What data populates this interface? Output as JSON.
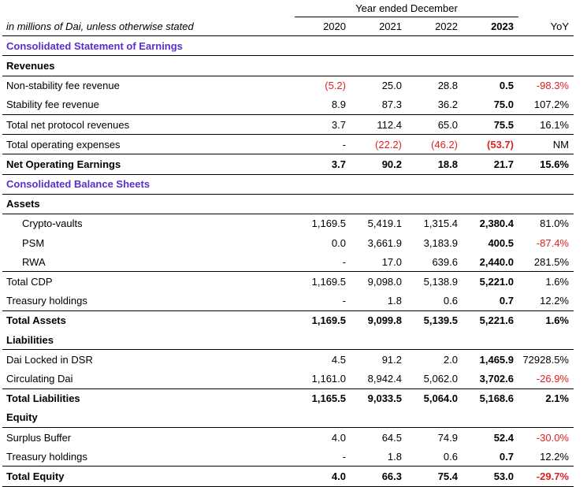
{
  "header": {
    "period": "Year ended December",
    "unit_note": "in millions of Dai, unless otherwise stated",
    "years": [
      "2020",
      "2021",
      "2022",
      "2023",
      "YoY"
    ]
  },
  "rows": [
    {
      "label": "Consolidated Statement of Earnings",
      "kind": "section"
    },
    {
      "label": "Revenues",
      "kind": "heading"
    },
    {
      "label": "Non-stability fee revenue",
      "kind": "row",
      "values": [
        "(5.2)",
        "25.0",
        "28.8",
        "0.5",
        "-98.3%"
      ],
      "neg": [
        true,
        false,
        false,
        false,
        true
      ]
    },
    {
      "label": "Stability fee revenue",
      "kind": "row",
      "values": [
        "8.9",
        "87.3",
        "36.2",
        "75.0",
        "107.2%"
      ],
      "neg": [
        false,
        false,
        false,
        false,
        false
      ]
    },
    {
      "label": "Total net protocol revenues",
      "kind": "row",
      "values": [
        "3.7",
        "112.4",
        "65.0",
        "75.5",
        "16.1%"
      ],
      "neg": [
        false,
        false,
        false,
        false,
        false
      ]
    },
    {
      "label": "Total operating expenses",
      "kind": "row",
      "values": [
        "-",
        "(22.2)",
        "(46.2)",
        "(53.7)",
        "NM"
      ],
      "neg": [
        false,
        true,
        true,
        true,
        false
      ]
    },
    {
      "label": "Net Operating Earnings",
      "kind": "bold",
      "values": [
        "3.7",
        "90.2",
        "18.8",
        "21.7",
        "15.6%"
      ],
      "neg": [
        false,
        false,
        false,
        false,
        false
      ]
    },
    {
      "label": "Consolidated Balance Sheets",
      "kind": "section"
    },
    {
      "label": "Assets",
      "kind": "heading"
    },
    {
      "label": "Crypto-vaults",
      "kind": "indent",
      "values": [
        "1,169.5",
        "5,419.1",
        "1,315.4",
        "2,380.4",
        "81.0%"
      ],
      "neg": [
        false,
        false,
        false,
        false,
        false
      ]
    },
    {
      "label": "PSM",
      "kind": "indent",
      "values": [
        "0.0",
        "3,661.9",
        "3,183.9",
        "400.5",
        "-87.4%"
      ],
      "neg": [
        false,
        false,
        false,
        false,
        true
      ]
    },
    {
      "label": "RWA",
      "kind": "indent",
      "values": [
        "-",
        "17.0",
        "639.6",
        "2,440.0",
        "281.5%"
      ],
      "neg": [
        false,
        false,
        false,
        false,
        false
      ]
    },
    {
      "label": "Total CDP",
      "kind": "row",
      "values": [
        "1,169.5",
        "9,098.0",
        "5,138.9",
        "5,221.0",
        "1.6%"
      ],
      "neg": [
        false,
        false,
        false,
        false,
        false
      ]
    },
    {
      "label": "Treasury holdings",
      "kind": "row",
      "values": [
        "-",
        "1.8",
        "0.6",
        "0.7",
        "12.2%"
      ],
      "neg": [
        false,
        false,
        false,
        false,
        false
      ]
    },
    {
      "label": "Total Assets",
      "kind": "bold",
      "values": [
        "1,169.5",
        "9,099.8",
        "5,139.5",
        "5,221.6",
        "1.6%"
      ],
      "neg": [
        false,
        false,
        false,
        false,
        false
      ]
    },
    {
      "label": "Liabilities",
      "kind": "heading"
    },
    {
      "label": "Dai Locked in DSR",
      "kind": "row",
      "values": [
        "4.5",
        "91.2",
        "2.0",
        "1,465.9",
        "72928.5%"
      ],
      "neg": [
        false,
        false,
        false,
        false,
        false
      ]
    },
    {
      "label": "Circulating Dai",
      "kind": "row",
      "values": [
        "1,161.0",
        "8,942.4",
        "5,062.0",
        "3,702.6",
        "-26.9%"
      ],
      "neg": [
        false,
        false,
        false,
        false,
        true
      ]
    },
    {
      "label": "Total Liabilities",
      "kind": "bold",
      "values": [
        "1,165.5",
        "9,033.5",
        "5,064.0",
        "5,168.6",
        "2.1%"
      ],
      "neg": [
        false,
        false,
        false,
        false,
        false
      ]
    },
    {
      "label": "Equity",
      "kind": "heading"
    },
    {
      "label": "Surplus Buffer",
      "kind": "row",
      "values": [
        "4.0",
        "64.5",
        "74.9",
        "52.4",
        "-30.0%"
      ],
      "neg": [
        false,
        false,
        false,
        false,
        true
      ]
    },
    {
      "label": "Treasury holdings",
      "kind": "row",
      "values": [
        "-",
        "1.8",
        "0.6",
        "0.7",
        "12.2%"
      ],
      "neg": [
        false,
        false,
        false,
        false,
        false
      ]
    },
    {
      "label": "Total Equity",
      "kind": "bold",
      "values": [
        "4.0",
        "66.3",
        "75.4",
        "53.0",
        "-29.7%"
      ],
      "neg": [
        false,
        false,
        false,
        false,
        true
      ]
    }
  ],
  "colors": {
    "section": "#5b2ecc",
    "negative": "#e02020"
  }
}
